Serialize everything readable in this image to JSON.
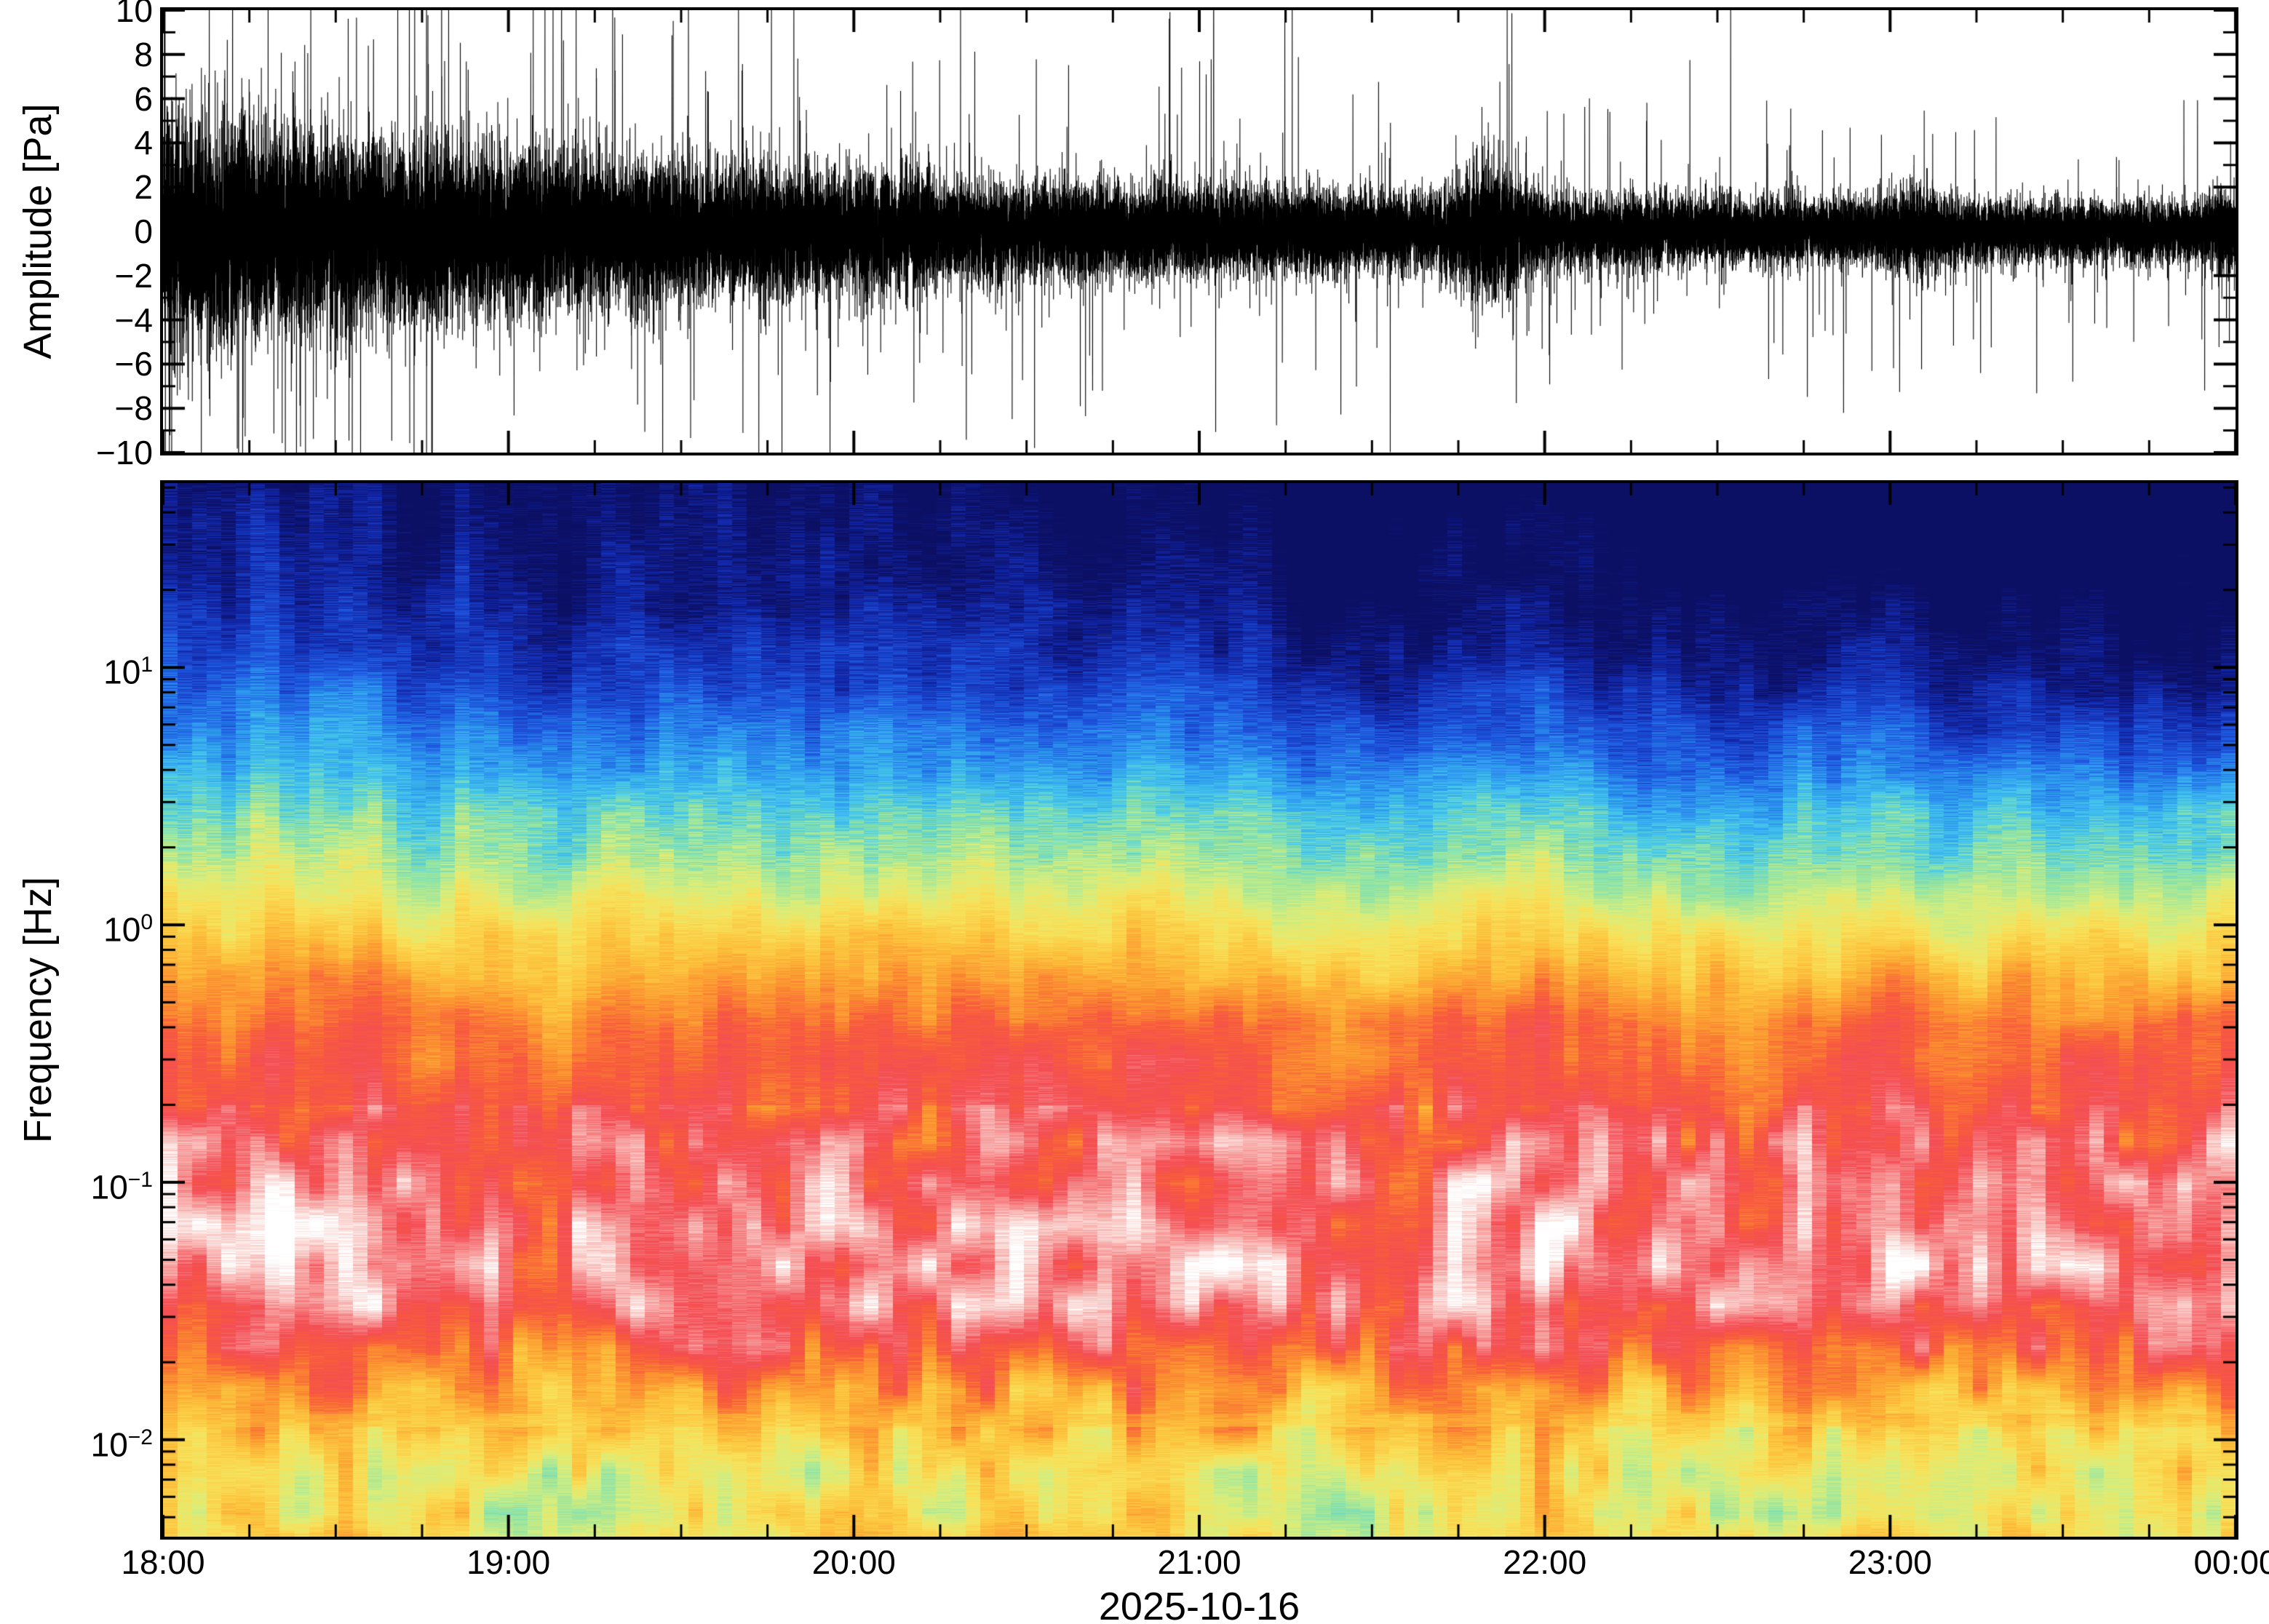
{
  "figure": {
    "background": "#ffffff"
  },
  "chart_data": [
    {
      "type": "line",
      "name": "pressure-waveform",
      "title": "",
      "ylabel": "Amplitude [Pa]",
      "ylim": [
        -10,
        10
      ],
      "y_ticks": [
        {
          "v": 10,
          "label": "10"
        },
        {
          "v": 8,
          "label": "8"
        },
        {
          "v": 6,
          "label": "6"
        },
        {
          "v": 4,
          "label": "4"
        },
        {
          "v": 2,
          "label": "2"
        },
        {
          "v": 0,
          "label": "0"
        },
        {
          "v": -2,
          "label": "−2"
        },
        {
          "v": -4,
          "label": "−4"
        },
        {
          "v": -6,
          "label": "−6"
        },
        {
          "v": -8,
          "label": "−8"
        },
        {
          "v": -10,
          "label": "−10"
        }
      ],
      "y_minor_step": 1,
      "x_hours_span": 6,
      "color": "#000000",
      "line_width": 1.1,
      "samples": 42000,
      "seed": 20251016,
      "envelope": {
        "floor": 0.7,
        "amp": 2.6,
        "tau_hours": 1.9,
        "bumps": [
          {
            "t": 3.85,
            "a": 1.0,
            "w": 0.07
          },
          {
            "t": 5.08,
            "a": 0.35,
            "w": 0.06
          },
          {
            "t": 5.97,
            "a": 0.3,
            "w": 0.05
          }
        ]
      },
      "core_sigma": 0.8,
      "spike_prob": 0.02,
      "spike_factor": 3.2
    },
    {
      "type": "heatmap",
      "name": "spectrogram",
      "ylabel": "Frequency [Hz]",
      "xlabel": "2025-10-16",
      "yscale": "log",
      "freq_range_hz": [
        0.0042,
        52
      ],
      "y_ticks": [
        {
          "exp": 1,
          "base": "10",
          "sup": "1"
        },
        {
          "exp": 0,
          "base": "10",
          "sup": "0"
        },
        {
          "exp": -1,
          "base": "10",
          "sup": "−1"
        },
        {
          "exp": -2,
          "base": "10",
          "sup": "−2"
        }
      ],
      "x_ticks": [
        {
          "h": 0,
          "label": "18:00"
        },
        {
          "h": 1,
          "label": "19:00"
        },
        {
          "h": 2,
          "label": "20:00"
        },
        {
          "h": 3,
          "label": "21:00"
        },
        {
          "h": 4,
          "label": "22:00"
        },
        {
          "h": 5,
          "label": "23:00"
        },
        {
          "h": 6,
          "label": "00:00"
        }
      ],
      "x_minor_per_interval": 3,
      "time_bins": 142,
      "seed": 77,
      "power_profile_log10hz_to_level": [
        [
          1.72,
          0.03
        ],
        [
          1.3,
          0.1
        ],
        [
          1.0,
          0.17
        ],
        [
          0.7,
          0.29
        ],
        [
          0.4,
          0.45
        ],
        [
          0.15,
          0.55
        ],
        [
          0.0,
          0.62
        ],
        [
          -0.2,
          0.7
        ],
        [
          -0.4,
          0.78
        ],
        [
          -0.7,
          0.82
        ],
        [
          -0.95,
          0.87
        ],
        [
          -1.2,
          0.92
        ],
        [
          -1.45,
          0.9
        ],
        [
          -1.62,
          0.82
        ],
        [
          -1.8,
          0.72
        ],
        [
          -2.0,
          0.62
        ],
        [
          -2.15,
          0.57
        ],
        [
          -2.3,
          0.58
        ],
        [
          -2.42,
          0.62
        ]
      ],
      "time_fade": {
        "amount": 0.17,
        "exponent": 1.1,
        "u_start": -0.55,
        "u_full": 1.2
      },
      "noise": {
        "column_walk_amp": 0.05,
        "block_amp_base": 0.05,
        "block_amp_white_band": 0.07,
        "white_band_u": [
          -1.9,
          -0.7
        ],
        "block_amp_bottom": 0.06,
        "bottom_band_u": [
          -2.45,
          -1.95
        ],
        "row_amp_highfreq": 0.05,
        "row_amp_lowfreq": 0.025,
        "highfreq_u_threshold": 0.2,
        "block_cell_bins": 2,
        "block_cell_decades": 0.16
      },
      "colormap": [
        [
          0.0,
          "#0c1065"
        ],
        [
          0.08,
          "#1226a8"
        ],
        [
          0.18,
          "#1e57e0"
        ],
        [
          0.28,
          "#2f9df0"
        ],
        [
          0.36,
          "#46c8ea"
        ],
        [
          0.44,
          "#8fe4a6"
        ],
        [
          0.52,
          "#d9ee7b"
        ],
        [
          0.58,
          "#f8e25a"
        ],
        [
          0.65,
          "#fdc23c"
        ],
        [
          0.72,
          "#fc9130"
        ],
        [
          0.78,
          "#f85c3c"
        ],
        [
          0.84,
          "#f44d55"
        ],
        [
          0.9,
          "#f78f8f"
        ],
        [
          0.96,
          "#fbd3cf"
        ],
        [
          1.0,
          "#ffffff"
        ]
      ]
    }
  ]
}
